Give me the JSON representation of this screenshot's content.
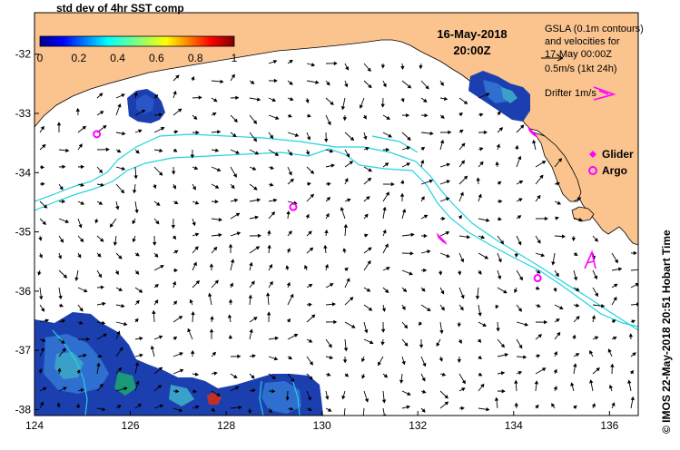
{
  "map": {
    "lon_ticks": [
      "124",
      "126",
      "128",
      "130",
      "132",
      "134",
      "136"
    ],
    "lat_ticks": [
      "-32",
      "-33",
      "-34",
      "-35",
      "-36",
      "-37",
      "-38"
    ],
    "lon_range": [
      124,
      136.6
    ],
    "lat_range": [
      -38.1,
      -31.3
    ]
  },
  "colorbar": {
    "title": "std dev of 4hr SST comp",
    "ticks": [
      "0",
      "0.2",
      "0.4",
      "0.6",
      "0.8",
      "1"
    ]
  },
  "datetime": {
    "date": "16-May-2018",
    "time": "20:00Z"
  },
  "legend": {
    "gsla_line1": "GSLA (0.1m contours)",
    "gsla_line2": "and velocities for",
    "gsla_line3": "17-May 00:00Z",
    "scale": "0.5m/s (1kt 24h)",
    "drifter": "Drifter 1m/s",
    "glider": "Glider",
    "argo": "Argo"
  },
  "credit": "© IMOS 22-May-2018 20:51 Hobart Time",
  "colors": {
    "land": "#fbc48f",
    "ocean": "#ffffff",
    "contour": "#22d3e0",
    "platform": "#ff00ff",
    "sst": "#1c3fb0"
  },
  "platforms": {
    "argo": [
      {
        "lon": 125.3,
        "lat": -33.35
      },
      {
        "lon": 129.4,
        "lat": -34.58
      },
      {
        "lon": 134.5,
        "lat": -35.78
      }
    ],
    "glider": [
      {
        "lon": 134.4,
        "lat": -33.3
      },
      {
        "lon": 132.5,
        "lat": -35.1
      }
    ]
  }
}
